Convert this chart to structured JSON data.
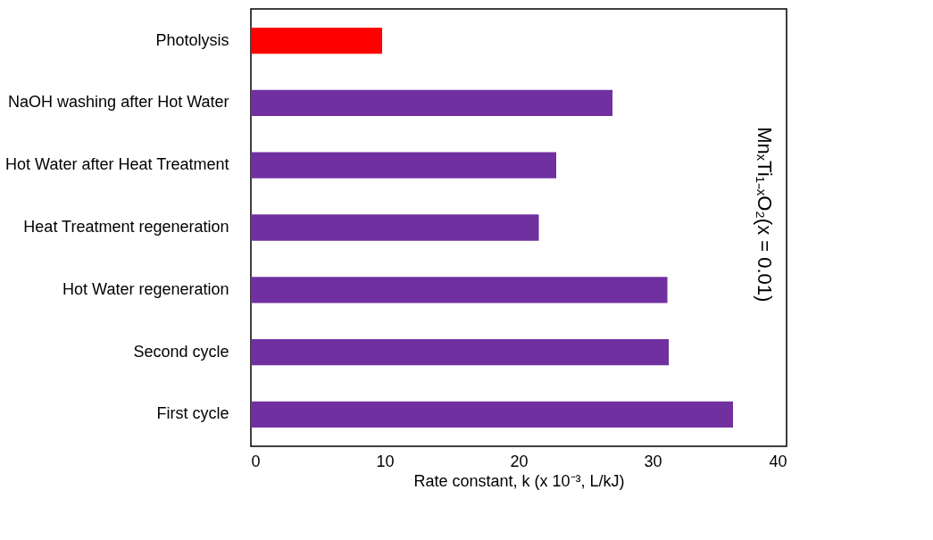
{
  "chart_data": {
    "type": "bar",
    "orientation": "horizontal",
    "xlabel": "Rate constant, k (x 10⁻³, L/kJ)",
    "categories": [
      "Photolysis",
      "NaOH washing after Hot Water",
      "Hot Water after Heat Treatment",
      "Heat Treatment regeneration",
      "Hot Water regeneration",
      "Second cycle",
      "First cycle"
    ],
    "values": [
      9.8,
      27.0,
      22.8,
      21.5,
      31.1,
      31.2,
      36.0
    ],
    "colors": [
      "#ff0000",
      "#7030a0",
      "#7030a0",
      "#7030a0",
      "#7030a0",
      "#7030a0",
      "#7030a0"
    ],
    "xlim": [
      0,
      40
    ],
    "xticks": [
      0,
      10,
      20,
      30,
      40
    ],
    "grid": false,
    "annotations": [
      "MnₓTi₁₋ₓO₂(x = 0.01)"
    ]
  }
}
